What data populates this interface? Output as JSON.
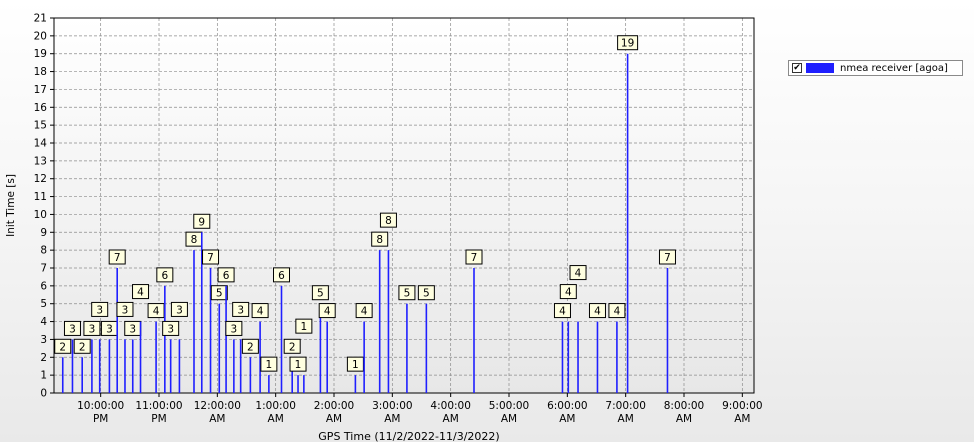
{
  "colors": {
    "series": "#1f1fff",
    "label_bg": "#ffffe0"
  },
  "legend": {
    "checkbox_glyph": "✔",
    "checked": true
  },
  "chart_data": {
    "type": "bar",
    "ylabel": "Init Time [s]",
    "xlabel": "GPS Time (11/2/2022-11/3/2022)",
    "ylim": [
      0,
      21
    ],
    "y_ticks": [
      "0",
      "1",
      "2",
      "3",
      "4",
      "5",
      "6",
      "7",
      "8",
      "9",
      "10",
      "11",
      "12",
      "13",
      "14",
      "15",
      "16",
      "17",
      "18",
      "19",
      "20",
      "21"
    ],
    "x_range_hours": [
      21.2,
      33.2
    ],
    "x_tick_labels": [
      {
        "line1": "10:00:00",
        "line2": "PM"
      },
      {
        "line1": "11:00:00",
        "line2": "PM"
      },
      {
        "line1": "12:00:00",
        "line2": "AM"
      },
      {
        "line1": "1:00:00",
        "line2": "AM"
      },
      {
        "line1": "2:00:00",
        "line2": "AM"
      },
      {
        "line1": "3:00:00",
        "line2": "AM"
      },
      {
        "line1": "4:00:00",
        "line2": "AM"
      },
      {
        "line1": "5:00:00",
        "line2": "AM"
      },
      {
        "line1": "6:00:00",
        "line2": "AM"
      },
      {
        "line1": "7:00:00",
        "line2": "AM"
      },
      {
        "line1": "8:00:00",
        "line2": "AM"
      },
      {
        "line1": "9:00:00",
        "line2": "AM"
      }
    ],
    "grid": true,
    "legend_position": "right",
    "series": [
      {
        "name": "nmea receiver [agoa]",
        "points": [
          {
            "x": "9:21 PM",
            "y": 2
          },
          {
            "x": "9:31 PM",
            "y": 3
          },
          {
            "x": "9:41 PM",
            "y": 2
          },
          {
            "x": "9:51 PM",
            "y": 3
          },
          {
            "x": "9:59 PM",
            "y": 3
          },
          {
            "x": "10:09 PM",
            "y": 3
          },
          {
            "x": "10:17 PM",
            "y": 7
          },
          {
            "x": "10:25 PM",
            "y": 3
          },
          {
            "x": "10:33 PM",
            "y": 3
          },
          {
            "x": "10:41 PM",
            "y": 4
          },
          {
            "x": "10:57 PM",
            "y": 4
          },
          {
            "x": "11:06 PM",
            "y": 6
          },
          {
            "x": "11:12 PM",
            "y": 3
          },
          {
            "x": "11:21 PM",
            "y": 3
          },
          {
            "x": "11:36 PM",
            "y": 8
          },
          {
            "x": "11:44 PM",
            "y": 9
          },
          {
            "x": "11:53 PM",
            "y": 7
          },
          {
            "x": "12:02 AM",
            "y": 5
          },
          {
            "x": "12:09 AM",
            "y": 6
          },
          {
            "x": "12:17 AM",
            "y": 3
          },
          {
            "x": "12:24 AM",
            "y": 3
          },
          {
            "x": "12:34 AM",
            "y": 2
          },
          {
            "x": "12:44 AM",
            "y": 4
          },
          {
            "x": "12:53 AM",
            "y": 1
          },
          {
            "x": "1:06 AM",
            "y": 6
          },
          {
            "x": "1:17 AM",
            "y": 2
          },
          {
            "x": "1:23 AM",
            "y": 1
          },
          {
            "x": "1:29 AM",
            "y": 1
          },
          {
            "x": "1:46 AM",
            "y": 5
          },
          {
            "x": "1:53 AM",
            "y": 4
          },
          {
            "x": "2:22 AM",
            "y": 1
          },
          {
            "x": "2:31 AM",
            "y": 4
          },
          {
            "x": "2:47 AM",
            "y": 8
          },
          {
            "x": "2:56 AM",
            "y": 8
          },
          {
            "x": "3:15 AM",
            "y": 5
          },
          {
            "x": "3:35 AM",
            "y": 5
          },
          {
            "x": "4:24 AM",
            "y": 7
          },
          {
            "x": "5:55 AM",
            "y": 4
          },
          {
            "x": "6:01 AM",
            "y": 4
          },
          {
            "x": "6:11 AM",
            "y": 4
          },
          {
            "x": "6:31 AM",
            "y": 4
          },
          {
            "x": "6:51 AM",
            "y": 4
          },
          {
            "x": "7:02 AM",
            "y": 19
          },
          {
            "x": "7:43 AM",
            "y": 7
          }
        ]
      }
    ]
  }
}
